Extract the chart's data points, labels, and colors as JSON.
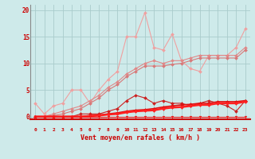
{
  "x": [
    0,
    1,
    2,
    3,
    4,
    5,
    6,
    7,
    8,
    9,
    10,
    11,
    12,
    13,
    14,
    15,
    16,
    17,
    18,
    19,
    20,
    21,
    22,
    23
  ],
  "background_color": "#ceeaea",
  "grid_color": "#aacccc",
  "xlabel": "Vent moyen/en rafales ( km/h )",
  "yticks": [
    0,
    5,
    10,
    15,
    20
  ],
  "ylim": [
    -0.5,
    21
  ],
  "xlim": [
    -0.5,
    23.5
  ],
  "series": [
    {
      "name": "light_pink_line",
      "color": "#f0a0a0",
      "linewidth": 0.8,
      "marker": "D",
      "markersize": 2.0,
      "y": [
        2.5,
        0.5,
        2.0,
        2.5,
        5.0,
        5.0,
        2.5,
        5.0,
        7.0,
        8.5,
        15.0,
        15.0,
        19.5,
        13.0,
        12.5,
        15.5,
        10.5,
        9.0,
        8.5,
        11.5,
        11.5,
        11.5,
        13.0,
        16.5
      ]
    },
    {
      "name": "medium_pink_line1",
      "color": "#e08888",
      "linewidth": 0.8,
      "marker": "D",
      "markersize": 2.0,
      "y": [
        0.0,
        0.0,
        0.5,
        1.0,
        1.5,
        2.0,
        3.0,
        4.0,
        5.5,
        6.5,
        8.0,
        9.0,
        10.0,
        10.5,
        10.0,
        10.5,
        10.5,
        11.0,
        11.5,
        11.5,
        11.5,
        11.5,
        11.5,
        13.0
      ]
    },
    {
      "name": "medium_pink_line2",
      "color": "#d87878",
      "linewidth": 0.8,
      "marker": "D",
      "markersize": 2.0,
      "y": [
        0.0,
        0.0,
        0.2,
        0.5,
        1.0,
        1.5,
        2.5,
        3.5,
        5.0,
        6.0,
        7.5,
        8.5,
        9.5,
        9.5,
        9.5,
        9.8,
        10.0,
        10.5,
        11.0,
        11.0,
        11.0,
        11.0,
        11.0,
        12.5
      ]
    },
    {
      "name": "dark_red_spiky",
      "color": "#cc2020",
      "linewidth": 0.8,
      "marker": "D",
      "markersize": 2.0,
      "y": [
        0.0,
        0.0,
        0.0,
        0.0,
        0.0,
        0.5,
        0.5,
        0.5,
        1.0,
        1.5,
        3.0,
        4.0,
        3.5,
        2.5,
        3.0,
        2.5,
        2.5,
        2.0,
        2.5,
        3.0,
        2.5,
        2.0,
        1.0,
        3.0
      ]
    },
    {
      "name": "dark_red_flat1",
      "color": "#dd1010",
      "linewidth": 1.2,
      "marker": "D",
      "markersize": 2.0,
      "y": [
        0.0,
        0.0,
        0.0,
        0.0,
        0.0,
        0.0,
        0.2,
        0.3,
        0.5,
        0.7,
        1.0,
        1.2,
        1.3,
        1.5,
        1.8,
        2.0,
        2.2,
        2.3,
        2.5,
        2.5,
        2.8,
        2.8,
        2.8,
        3.0
      ]
    },
    {
      "name": "dark_red_flat2",
      "color": "#ff2020",
      "linewidth": 1.8,
      "marker": "D",
      "markersize": 2.0,
      "y": [
        0.0,
        0.0,
        0.0,
        0.0,
        0.0,
        0.0,
        0.1,
        0.2,
        0.4,
        0.5,
        0.8,
        1.0,
        1.1,
        1.2,
        1.5,
        1.7,
        1.8,
        2.0,
        2.2,
        2.2,
        2.5,
        2.5,
        2.5,
        2.8
      ]
    },
    {
      "name": "dark_red_zero",
      "color": "#ee1818",
      "linewidth": 0.8,
      "marker": "v",
      "markersize": 2.0,
      "y": [
        0.0,
        0.0,
        0.0,
        0.0,
        0.0,
        0.0,
        0.0,
        0.0,
        0.0,
        0.0,
        0.0,
        0.0,
        0.0,
        0.0,
        0.0,
        0.0,
        0.0,
        0.0,
        0.0,
        0.0,
        0.0,
        0.0,
        0.0,
        0.0
      ]
    }
  ],
  "wind_arrow_chars": [
    "↗",
    "→",
    "→",
    "↗",
    "→",
    "↘",
    "↘",
    "↘",
    "↙",
    "↓",
    "↙",
    "↙",
    "↓",
    "↘",
    "↙",
    "↘",
    "←",
    "→",
    "↗",
    "↑",
    "↘",
    "→",
    "→",
    "↘"
  ],
  "arrow_color": "#cc2020",
  "xlabel_color": "#cc0000",
  "tick_color": "#cc0000",
  "left_spine_color": "#888888",
  "bottom_spine_color": "#cc0000"
}
